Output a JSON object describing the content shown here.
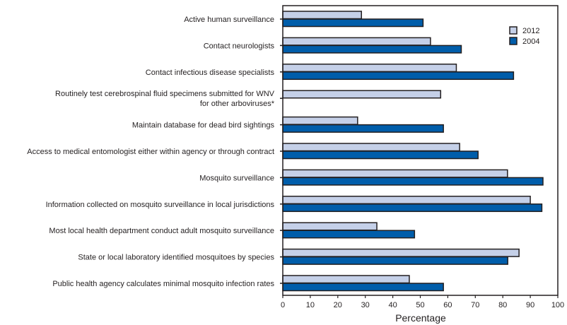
{
  "chart_data": {
    "type": "bar",
    "orientation": "horizontal",
    "xlabel": "Percentage",
    "xlim": [
      0,
      100
    ],
    "xticks": [
      0,
      10,
      20,
      30,
      40,
      50,
      60,
      70,
      80,
      90,
      100
    ],
    "grid": false,
    "legend_position": "top-right",
    "categories": [
      [
        "Active human surveillance"
      ],
      [
        "Contact neurologists"
      ],
      [
        "Contact infectious disease specialists"
      ],
      [
        "Routinely test cerebrospinal fluid specimens submitted for WNV",
        "for other arboviruses*"
      ],
      [
        "Maintain database for dead bird sightings"
      ],
      [
        "Access to medical entomologist either within agency or through contract"
      ],
      [
        "Mosquito surveillance"
      ],
      [
        "Information collected on mosquito surveillance in local jurisdictions"
      ],
      [
        "Most local health department conduct adult mosquito surveillance"
      ],
      [
        "State or local laboratory identified mosquitoes by species"
      ],
      [
        "Public health agency calculates minimal mosquito infection rates"
      ]
    ],
    "series": [
      {
        "name": "2012",
        "color": "#c5d0e8",
        "values": [
          28.6,
          53.7,
          63.1,
          57.4,
          27.2,
          64.3,
          81.7,
          90.0,
          34.2,
          85.9,
          46.0
        ]
      },
      {
        "name": "2004",
        "color": "#005daa",
        "values": [
          51.0,
          64.9,
          83.9,
          null,
          58.4,
          71.0,
          94.6,
          94.2,
          47.9,
          81.8,
          58.4
        ]
      }
    ]
  }
}
